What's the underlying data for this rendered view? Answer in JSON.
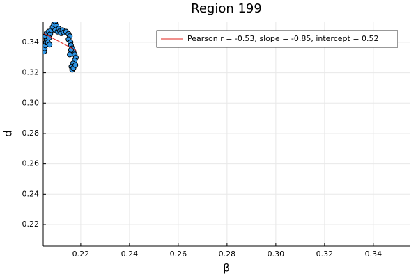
{
  "chart_data": {
    "type": "scatter",
    "title": "Region 199",
    "x_label": "β",
    "y_label": "d",
    "xlim": [
      0.2046,
      0.3549
    ],
    "ylim": [
      0.2058,
      0.3537
    ],
    "xticks": [
      0.22,
      0.24,
      0.26,
      0.28,
      {
        "value": 0.3,
        "label": "0.30"
      },
      0.32,
      0.34
    ],
    "yticks": [
      0.22,
      0.24,
      0.26,
      0.28,
      {
        "value": 0.3,
        "label": "0.30"
      },
      0.32,
      0.34
    ],
    "grid": true,
    "legend": "top-right",
    "points": {
      "color": "#2f96e6",
      "x": [
        0.205,
        0.2052,
        0.2055,
        0.2058,
        0.206,
        0.2055,
        0.206,
        0.2068,
        0.2075,
        0.207,
        0.2065,
        0.2072,
        0.208,
        0.2085,
        0.209,
        0.2095,
        0.21,
        0.2095,
        0.2105,
        0.211,
        0.2115,
        0.212,
        0.2125,
        0.213,
        0.214,
        0.215,
        0.2155,
        0.215,
        0.2158,
        0.216,
        0.2165,
        0.217,
        0.2175,
        0.218,
        0.2175,
        0.2168,
        0.2162,
        0.2165,
        0.217,
        0.2178,
        0.216,
        0.2155
      ],
      "y": [
        0.334,
        0.336,
        0.338,
        0.34,
        0.342,
        0.344,
        0.346,
        0.347,
        0.3455,
        0.343,
        0.34,
        0.3385,
        0.348,
        0.35,
        0.352,
        0.3535,
        0.351,
        0.348,
        0.347,
        0.349,
        0.3475,
        0.346,
        0.348,
        0.3465,
        0.347,
        0.3455,
        0.344,
        0.342,
        0.34,
        0.338,
        0.336,
        0.334,
        0.332,
        0.33,
        0.328,
        0.326,
        0.324,
        0.322,
        0.323,
        0.325,
        0.335,
        0.332
      ]
    },
    "series": [
      {
        "name": "Pearson r = -0.53, slope = -0.85, intercept = 0.52",
        "color": "#e0201b",
        "x": [
          0.205,
          0.218
        ],
        "values": [
          0.3457,
          0.3347
        ]
      }
    ]
  }
}
